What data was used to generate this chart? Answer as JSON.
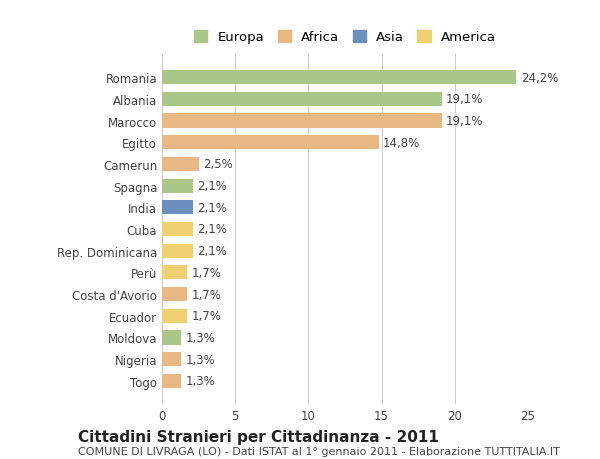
{
  "countries": [
    "Romania",
    "Albania",
    "Marocco",
    "Egitto",
    "Camerun",
    "Spagna",
    "India",
    "Cuba",
    "Rep. Dominicana",
    "Perù",
    "Costa d'Avorio",
    "Ecuador",
    "Moldova",
    "Nigeria",
    "Togo"
  ],
  "values": [
    24.2,
    19.1,
    19.1,
    14.8,
    2.5,
    2.1,
    2.1,
    2.1,
    2.1,
    1.7,
    1.7,
    1.7,
    1.3,
    1.3,
    1.3
  ],
  "labels": [
    "24,2%",
    "19,1%",
    "19,1%",
    "14,8%",
    "2,5%",
    "2,1%",
    "2,1%",
    "2,1%",
    "2,1%",
    "1,7%",
    "1,7%",
    "1,7%",
    "1,3%",
    "1,3%",
    "1,3%"
  ],
  "categories": [
    "Europa",
    "Africa",
    "Asia",
    "America"
  ],
  "bar_colors": [
    "#aac788",
    "#aac788",
    "#e8b882",
    "#e8b882",
    "#e8b882",
    "#aac788",
    "#6b8fbf",
    "#f0d070",
    "#f0d070",
    "#f0d070",
    "#e8b882",
    "#f0d070",
    "#aac788",
    "#e8b882",
    "#e8b882"
  ],
  "legend_colors": {
    "Europa": "#aac788",
    "Africa": "#e8b882",
    "Asia": "#6b8fbf",
    "America": "#f0d070"
  },
  "title": "Cittadini Stranieri per Cittadinanza - 2011",
  "subtitle": "COMUNE DI LIVRAGA (LO) - Dati ISTAT al 1° gennaio 2011 - Elaborazione TUTTITALIA.IT",
  "xlim": [
    0,
    25
  ],
  "xticks": [
    0,
    5,
    10,
    15,
    20,
    25
  ],
  "background_color": "#ffffff",
  "grid_color": "#cccccc",
  "bar_height": 0.65,
  "title_fontsize": 11,
  "subtitle_fontsize": 8,
  "label_fontsize": 8.5,
  "tick_fontsize": 8.5
}
